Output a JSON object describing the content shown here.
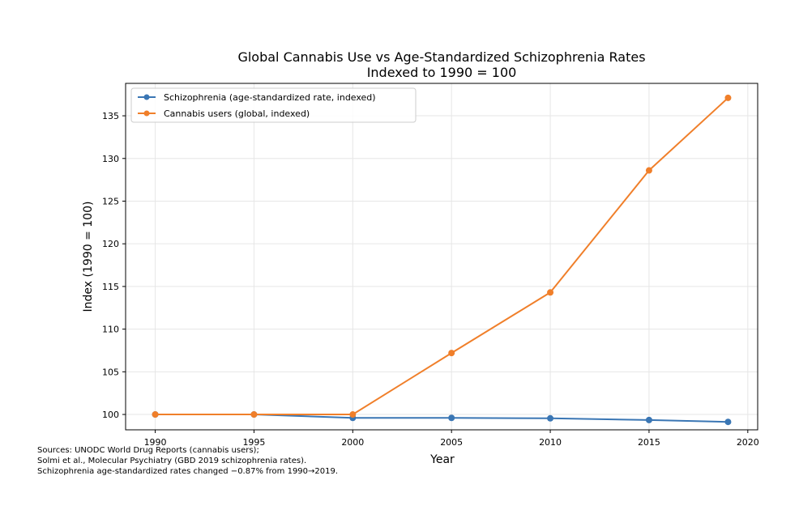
{
  "chart_data": {
    "type": "line",
    "title": "Global Cannabis Use vs Age-Standardized Schizophrenia Rates",
    "subtitle": "Indexed to 1990 = 100",
    "xlabel": "Year",
    "ylabel": "Index (1990 = 100)",
    "x": [
      1990,
      1995,
      2000,
      2005,
      2010,
      2015,
      2019
    ],
    "xlim": [
      1988.5,
      2020.5
    ],
    "ylim": [
      98.2,
      138.8
    ],
    "xticks": [
      1990,
      1995,
      2000,
      2005,
      2010,
      2015,
      2020
    ],
    "yticks": [
      100,
      105,
      110,
      115,
      120,
      125,
      130,
      135
    ],
    "grid": true,
    "legend_position": "upper-left",
    "series": [
      {
        "name": "Schizophrenia (age-standardized rate, indexed)",
        "color": "#3a76b4",
        "values": [
          100,
          100,
          99.6,
          99.6,
          99.55,
          99.35,
          99.13
        ]
      },
      {
        "name": "Cannabis users (global, indexed)",
        "color": "#f07f2a",
        "values": [
          100,
          100,
          100,
          107.2,
          114.3,
          128.6,
          137.1
        ]
      }
    ]
  },
  "footnote": [
    "Sources: UNODC World Drug Reports (cannabis users);",
    "Solmi et al., Molecular Psychiatry (GBD 2019 schizophrenia rates).",
    "Schizophrenia age-standardized rates changed −0.87% from 1990→2019."
  ]
}
